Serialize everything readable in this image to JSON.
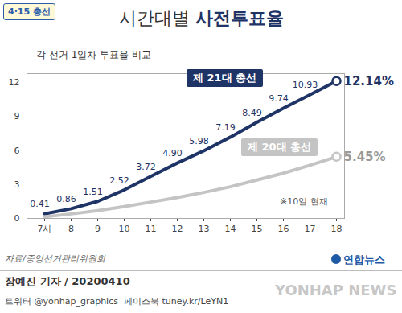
{
  "chart_data": {
    "type": "line",
    "badge": "4·15 총선",
    "title": "시간대별 사전투표율",
    "subtitle": "각 선거 1일차 투표율 비교",
    "categories": [
      "7시",
      "8",
      "9",
      "10",
      "11",
      "12",
      "13",
      "14",
      "15",
      "16",
      "17",
      "18"
    ],
    "series": [
      {
        "name": "제 21대 총선",
        "color": "#1f3466",
        "values": [
          0.41,
          0.86,
          1.51,
          2.52,
          3.72,
          4.9,
          5.98,
          7.19,
          8.49,
          9.74,
          10.93,
          12.14
        ],
        "value_labels": [
          "0.41",
          "0.86",
          "1.51",
          "2.52",
          "3.72",
          "4.90",
          "5.98",
          "7.19",
          "8.49",
          "9.74",
          "10.93",
          "12.14%"
        ]
      },
      {
        "name": "제 20대 총선",
        "color": "#c4c4c4",
        "values": [
          0.15,
          0.4,
          0.7,
          1.05,
          1.45,
          1.85,
          2.3,
          2.8,
          3.4,
          4.0,
          4.7,
          5.45
        ],
        "value_labels": [
          null,
          null,
          null,
          null,
          null,
          null,
          null,
          null,
          null,
          null,
          null,
          "5.45%"
        ]
      }
    ],
    "ylim": [
      0,
      12.8
    ],
    "yticks": [
      0,
      3,
      6,
      9,
      12
    ],
    "grid": false,
    "data_labels": true,
    "annotations": [
      "※10일 현재"
    ],
    "source": "자료/중앙선거관리위원회",
    "credit": "장예진 기자 / 20200410",
    "social": "트위터 @yonhap_graphics  페이스북 tuney.kr/LeYN1",
    "logo": "연합뉴스",
    "watermark": "YONHAP NEWS"
  }
}
